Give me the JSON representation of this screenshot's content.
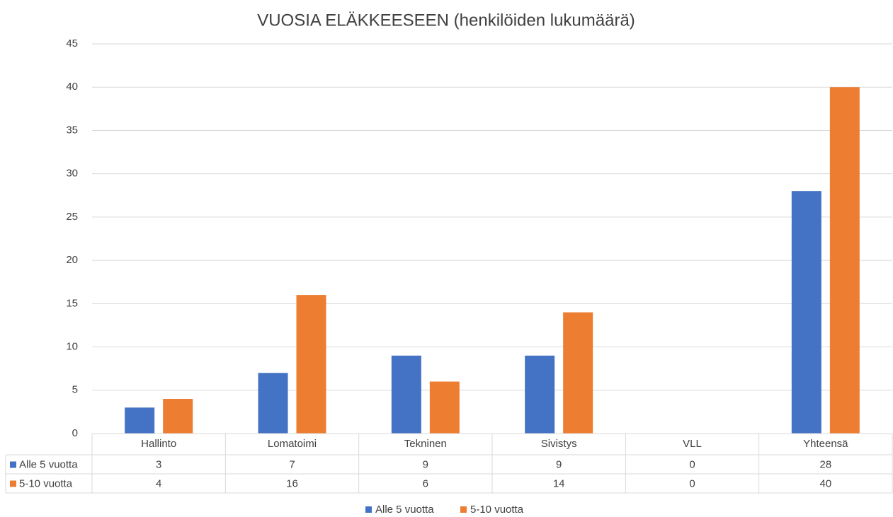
{
  "chart_data": {
    "type": "bar",
    "title": "VUOSIA ELÄKKEESEEN (henkilöiden lukumäärä)",
    "categories": [
      "Hallinto",
      "Lomatoimi",
      "Tekninen",
      "Sivistys",
      "VLL",
      "Yhteensä"
    ],
    "series": [
      {
        "name": "Alle 5 vuotta",
        "color": "#4472c4",
        "values": [
          3,
          7,
          9,
          9,
          0,
          28
        ]
      },
      {
        "name": "5-10 vuotta",
        "color": "#ed7d31",
        "values": [
          4,
          16,
          6,
          14,
          0,
          40
        ]
      }
    ],
    "ylim": [
      0,
      45
    ],
    "yticks": [
      0,
      5,
      10,
      15,
      20,
      25,
      30,
      35,
      40,
      45
    ],
    "grid": true,
    "legend": "bottom",
    "data_table": true
  }
}
